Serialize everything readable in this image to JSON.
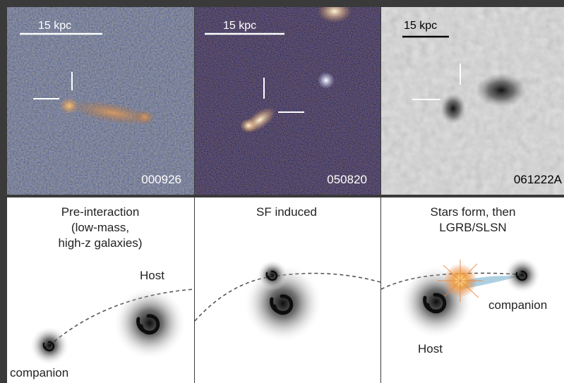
{
  "imaging": {
    "panels": [
      {
        "scale_label": "15 kpc",
        "id_label": "000926"
      },
      {
        "scale_label": "15 kpc",
        "id_label": "050820"
      },
      {
        "scale_label": "15 kpc",
        "id_label": "061222A"
      }
    ]
  },
  "cartoon": {
    "panels": [
      {
        "title_lines": [
          "Pre-interaction",
          "(low-mass,",
          "high-z galaxies)"
        ],
        "host_label": "Host",
        "companion_label": "companion"
      },
      {
        "title_lines": [
          "SF induced"
        ]
      },
      {
        "title_lines": [
          "Stars form, then",
          "LGRB/SLSN"
        ],
        "host_label": "Host",
        "companion_label": "companion"
      }
    ]
  },
  "colors": {
    "border": "#3a3a3a",
    "marker": "#ffffff",
    "path": "#555555",
    "burst": "#e8843a",
    "stream": "#6aa7c8"
  }
}
